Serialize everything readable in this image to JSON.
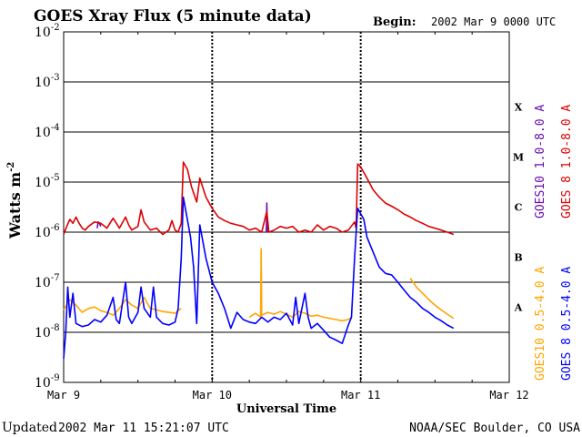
{
  "header": {
    "title": "GOES Xray Flux (5 minute data)",
    "begin_label": "Begin:",
    "begin_value": "2002 Mar 9 0000 UTC"
  },
  "footer": {
    "updated_label": "Updated",
    "updated_value": "2002 Mar 11 15:21:07 UTC",
    "credit": "NOAA/SEC Boulder, CO USA"
  },
  "chart_data": {
    "type": "line",
    "title": "GOES Xray Flux (5 minute data)",
    "xlabel": "Universal Time",
    "ylabel": "Watts m",
    "ylabel_sup": "-2",
    "yscale": "log",
    "ylim": [
      1e-09,
      0.01
    ],
    "xlim": [
      "2002-03-09 00:00",
      "2002-03-12 00:00"
    ],
    "x_ticks": [
      "Mar 9",
      "Mar 10",
      "Mar 11",
      "Mar 12"
    ],
    "y_ticks": [
      {
        "base": "10",
        "exp": "-9"
      },
      {
        "base": "10",
        "exp": "-8"
      },
      {
        "base": "10",
        "exp": "-7"
      },
      {
        "base": "10",
        "exp": "-6"
      },
      {
        "base": "10",
        "exp": "-5"
      },
      {
        "base": "10",
        "exp": "-4"
      },
      {
        "base": "10",
        "exp": "-3"
      },
      {
        "base": "10",
        "exp": "-2"
      }
    ],
    "flare_classes": [
      "A",
      "B",
      "C",
      "M",
      "X"
    ],
    "grid": true,
    "legend": [
      {
        "text": "GOES10 1.0-8.0 A",
        "color": "#6a0dad"
      },
      {
        "text": "GOES 8 1.0-8.0 A",
        "color": "#dd0000"
      },
      {
        "text": "GOES10 0.5-4.0 A",
        "color": "#ffa500"
      },
      {
        "text": "GOES 8 0.5-4.0 A",
        "color": "#0000ff"
      }
    ],
    "series": [
      {
        "name": "GOES10 1.0-8.0 A",
        "color": "#6a0dad",
        "points": [
          [
            "2002-03-09 05:24",
            1.2e-06
          ],
          [
            "2002-03-09 05:36",
            1.6e-06
          ],
          [
            "2002-03-09 05:48",
            1.5e-06
          ],
          [
            "2002-03-09 06:00",
            1.3e-06
          ],
          [
            "2002-03-10 08:45",
            1e-06
          ],
          [
            "2002-03-10 08:50",
            3.8e-06
          ],
          [
            "2002-03-10 08:55",
            1e-06
          ]
        ]
      },
      {
        "name": "GOES 8 1.0-8.0 A",
        "color": "#dd0000",
        "points": [
          [
            "2002-03-09 00:00",
            9e-07
          ],
          [
            "2002-03-09 00:30",
            1.3e-06
          ],
          [
            "2002-03-09 01:00",
            1.8e-06
          ],
          [
            "2002-03-09 01:30",
            1.5e-06
          ],
          [
            "2002-03-09 02:00",
            2e-06
          ],
          [
            "2002-03-09 02:30",
            1.5e-06
          ],
          [
            "2002-03-09 03:00",
            1.2e-06
          ],
          [
            "2002-03-09 03:30",
            1.1e-06
          ],
          [
            "2002-03-09 04:00",
            1.3e-06
          ],
          [
            "2002-03-09 05:00",
            1.6e-06
          ],
          [
            "2002-03-09 06:00",
            1.5e-06
          ],
          [
            "2002-03-09 07:00",
            1.2e-06
          ],
          [
            "2002-03-09 08:00",
            1.9e-06
          ],
          [
            "2002-03-09 09:00",
            1.2e-06
          ],
          [
            "2002-03-09 10:00",
            2e-06
          ],
          [
            "2002-03-09 10:30",
            1.4e-06
          ],
          [
            "2002-03-09 11:00",
            1.1e-06
          ],
          [
            "2002-03-09 12:00",
            1.3e-06
          ],
          [
            "2002-03-09 12:30",
            2.8e-06
          ],
          [
            "2002-03-09 13:00",
            1.6e-06
          ],
          [
            "2002-03-09 14:00",
            1.1e-06
          ],
          [
            "2002-03-09 15:00",
            1.2e-06
          ],
          [
            "2002-03-09 16:00",
            9e-07
          ],
          [
            "2002-03-09 17:00",
            1.1e-06
          ],
          [
            "2002-03-09 17:30",
            1.7e-06
          ],
          [
            "2002-03-09 18:00",
            1.1e-06
          ],
          [
            "2002-03-09 18:30",
            1e-06
          ],
          [
            "2002-03-09 19:00",
            1.5e-06
          ],
          [
            "2002-03-09 19:20",
            2.5e-05
          ],
          [
            "2002-03-09 20:00",
            1.8e-05
          ],
          [
            "2002-03-09 20:40",
            8e-06
          ],
          [
            "2002-03-09 21:30",
            4e-06
          ],
          [
            "2002-03-09 22:00",
            1.2e-05
          ],
          [
            "2002-03-09 23:00",
            5e-06
          ],
          [
            "2002-03-10 00:00",
            3e-06
          ],
          [
            "2002-03-10 01:00",
            2e-06
          ],
          [
            "2002-03-10 02:00",
            1.7e-06
          ],
          [
            "2002-03-10 03:00",
            1.5e-06
          ],
          [
            "2002-03-10 04:00",
            1.4e-06
          ],
          [
            "2002-03-10 05:00",
            1.3e-06
          ],
          [
            "2002-03-10 06:00",
            1.1e-06
          ],
          [
            "2002-03-10 07:00",
            1.2e-06
          ],
          [
            "2002-03-10 08:00",
            1e-06
          ],
          [
            "2002-03-10 08:50",
            2.6e-06
          ],
          [
            "2002-03-10 09:10",
            1e-06
          ],
          [
            "2002-03-10 10:00",
            1.1e-06
          ],
          [
            "2002-03-10 11:00",
            1.3e-06
          ],
          [
            "2002-03-10 12:00",
            1.2e-06
          ],
          [
            "2002-03-10 13:00",
            1.3e-06
          ],
          [
            "2002-03-10 14:00",
            1e-06
          ],
          [
            "2002-03-10 15:00",
            1.1e-06
          ],
          [
            "2002-03-10 16:00",
            1e-06
          ],
          [
            "2002-03-10 17:00",
            1.4e-06
          ],
          [
            "2002-03-10 18:00",
            1.1e-06
          ],
          [
            "2002-03-10 19:00",
            1.3e-06
          ],
          [
            "2002-03-10 20:00",
            1.2e-06
          ],
          [
            "2002-03-10 21:00",
            1e-06
          ],
          [
            "2002-03-10 22:00",
            1.1e-06
          ],
          [
            "2002-03-10 23:00",
            1.6e-06
          ],
          [
            "2002-03-10 23:15",
            1.2e-06
          ],
          [
            "2002-03-10 23:30",
            2.3e-05
          ],
          [
            "2002-03-11 00:00",
            2e-05
          ],
          [
            "2002-03-11 01:00",
            1.2e-05
          ],
          [
            "2002-03-11 02:00",
            7e-06
          ],
          [
            "2002-03-11 03:00",
            5e-06
          ],
          [
            "2002-03-11 04:00",
            3.8e-06
          ],
          [
            "2002-03-11 05:00",
            3.3e-06
          ],
          [
            "2002-03-11 06:00",
            2.8e-06
          ],
          [
            "2002-03-11 07:00",
            2.3e-06
          ],
          [
            "2002-03-11 08:00",
            2e-06
          ],
          [
            "2002-03-11 09:00",
            1.7e-06
          ],
          [
            "2002-03-11 10:00",
            1.5e-06
          ],
          [
            "2002-03-11 11:00",
            1.3e-06
          ],
          [
            "2002-03-11 12:00",
            1.2e-06
          ],
          [
            "2002-03-11 13:00",
            1.1e-06
          ],
          [
            "2002-03-11 14:00",
            1e-06
          ],
          [
            "2002-03-11 15:00",
            9e-07
          ]
        ]
      },
      {
        "name": "GOES10 0.5-4.0 A",
        "color": "#ffa500",
        "points": [
          [
            "2002-03-09 00:00",
            2.8e-08
          ],
          [
            "2002-03-09 01:00",
            4.5e-08
          ],
          [
            "2002-03-09 02:00",
            3.5e-08
          ],
          [
            "2002-03-09 03:00",
            2.5e-08
          ],
          [
            "2002-03-09 04:00",
            3e-08
          ],
          [
            "2002-03-09 05:00",
            3.2e-08
          ],
          [
            "2002-03-09 06:00",
            2.7e-08
          ],
          [
            "2002-03-09 07:00",
            2.5e-08
          ],
          [
            "2002-03-09 08:00",
            2.2e-08
          ],
          [
            "2002-03-09 09:00",
            3e-08
          ],
          [
            "2002-03-09 10:00",
            4.5e-08
          ],
          [
            "2002-03-09 11:00",
            3.5e-08
          ],
          [
            "2002-03-09 12:00",
            3e-08
          ],
          [
            "2002-03-09 13:00",
            5e-08
          ],
          [
            "2002-03-09 14:00",
            3e-08
          ],
          [
            "2002-03-09 15:00",
            2.8e-08
          ],
          [
            "2002-03-09 16:00",
            2.6e-08
          ],
          [
            "2002-03-09 17:00",
            2.5e-08
          ],
          [
            "2002-03-09 18:00",
            2.4e-08
          ],
          [
            "2002-03-09 19:00",
            3e-08
          ],
          [
            "2002-03-10 06:00",
            2e-08
          ],
          [
            "2002-03-10 07:00",
            2.4e-08
          ],
          [
            "2002-03-10 07:50",
            2e-08
          ],
          [
            "2002-03-10 07:55",
            4.7e-07
          ],
          [
            "2002-03-10 08:00",
            2.2e-08
          ],
          [
            "2002-03-10 09:00",
            2.5e-08
          ],
          [
            "2002-03-10 10:00",
            2.3e-08
          ],
          [
            "2002-03-10 11:00",
            2.6e-08
          ],
          [
            "2002-03-10 12:00",
            2.3e-08
          ],
          [
            "2002-03-10 13:00",
            2e-08
          ],
          [
            "2002-03-10 14:00",
            2.6e-08
          ],
          [
            "2002-03-10 15:00",
            2.4e-08
          ],
          [
            "2002-03-10 16:00",
            2.1e-08
          ],
          [
            "2002-03-10 17:00",
            2.2e-08
          ],
          [
            "2002-03-10 18:00",
            2e-08
          ],
          [
            "2002-03-10 19:00",
            1.9e-08
          ],
          [
            "2002-03-10 20:00",
            1.8e-08
          ],
          [
            "2002-03-10 21:00",
            1.7e-08
          ],
          [
            "2002-03-10 22:00",
            1.8e-08
          ],
          [
            "2002-03-10 22:30",
            2e-08
          ],
          [
            "2002-03-11 08:00",
            1.2e-07
          ],
          [
            "2002-03-11 09:00",
            8e-08
          ],
          [
            "2002-03-11 10:00",
            6e-08
          ],
          [
            "2002-03-11 11:00",
            4.5e-08
          ],
          [
            "2002-03-11 12:00",
            3.5e-08
          ],
          [
            "2002-03-11 13:00",
            2.8e-08
          ],
          [
            "2002-03-11 14:00",
            2.3e-08
          ],
          [
            "2002-03-11 15:00",
            1.9e-08
          ]
        ]
      },
      {
        "name": "GOES 8 0.5-4.0 A",
        "color": "#0000ff",
        "points": [
          [
            "2002-03-09 00:00",
            3e-09
          ],
          [
            "2002-03-09 00:20",
            1e-08
          ],
          [
            "2002-03-09 00:40",
            8e-08
          ],
          [
            "2002-03-09 01:00",
            2e-08
          ],
          [
            "2002-03-09 01:30",
            6e-08
          ],
          [
            "2002-03-09 02:00",
            1.5e-08
          ],
          [
            "2002-03-09 03:00",
            1.3e-08
          ],
          [
            "2002-03-09 04:00",
            1.4e-08
          ],
          [
            "2002-03-09 05:00",
            1.8e-08
          ],
          [
            "2002-03-09 06:00",
            1.6e-08
          ],
          [
            "2002-03-09 07:00",
            2.2e-08
          ],
          [
            "2002-03-09 08:00",
            5e-08
          ],
          [
            "2002-03-09 08:30",
            1.8e-08
          ],
          [
            "2002-03-09 09:00",
            1.5e-08
          ],
          [
            "2002-03-09 10:00",
            1e-07
          ],
          [
            "2002-03-09 10:30",
            2e-08
          ],
          [
            "2002-03-09 11:00",
            1.5e-08
          ],
          [
            "2002-03-09 12:00",
            2.5e-08
          ],
          [
            "2002-03-09 12:30",
            8e-08
          ],
          [
            "2002-03-09 13:00",
            3e-08
          ],
          [
            "2002-03-09 14:00",
            2e-08
          ],
          [
            "2002-03-09 14:30",
            8e-08
          ],
          [
            "2002-03-09 15:00",
            2e-08
          ],
          [
            "2002-03-09 16:00",
            1.5e-08
          ],
          [
            "2002-03-09 17:00",
            1.4e-08
          ],
          [
            "2002-03-09 18:00",
            1.6e-08
          ],
          [
            "2002-03-09 18:30",
            3e-08
          ],
          [
            "2002-03-09 19:00",
            3e-07
          ],
          [
            "2002-03-09 19:20",
            5e-06
          ],
          [
            "2002-03-09 19:40",
            3e-06
          ],
          [
            "2002-03-09 20:30",
            8e-07
          ],
          [
            "2002-03-09 21:00",
            2e-07
          ],
          [
            "2002-03-09 21:30",
            1.5e-08
          ],
          [
            "2002-03-09 22:00",
            1.4e-06
          ],
          [
            "2002-03-09 23:00",
            3e-07
          ],
          [
            "2002-03-10 00:00",
            1e-07
          ],
          [
            "2002-03-10 01:00",
            6e-08
          ],
          [
            "2002-03-10 02:00",
            3e-08
          ],
          [
            "2002-03-10 03:00",
            1.2e-08
          ],
          [
            "2002-03-10 04:00",
            2.5e-08
          ],
          [
            "2002-03-10 05:00",
            1.8e-08
          ],
          [
            "2002-03-10 06:00",
            1.6e-08
          ],
          [
            "2002-03-10 07:00",
            1.5e-08
          ],
          [
            "2002-03-10 08:00",
            2e-08
          ],
          [
            "2002-03-10 09:00",
            1.6e-08
          ],
          [
            "2002-03-10 10:00",
            2e-08
          ],
          [
            "2002-03-10 11:00",
            1.8e-08
          ],
          [
            "2002-03-10 12:00",
            2.4e-08
          ],
          [
            "2002-03-10 13:00",
            1.4e-08
          ],
          [
            "2002-03-10 13:30",
            5e-08
          ],
          [
            "2002-03-10 14:00",
            1.5e-08
          ],
          [
            "2002-03-10 15:00",
            6e-08
          ],
          [
            "2002-03-10 15:30",
            2e-08
          ],
          [
            "2002-03-10 16:00",
            1.2e-08
          ],
          [
            "2002-03-10 17:00",
            1.5e-08
          ],
          [
            "2002-03-10 18:00",
            1.1e-08
          ],
          [
            "2002-03-10 19:00",
            8e-09
          ],
          [
            "2002-03-10 20:00",
            7e-09
          ],
          [
            "2002-03-10 21:00",
            6e-09
          ],
          [
            "2002-03-10 22:00",
            1.4e-08
          ],
          [
            "2002-03-10 22:30",
            2e-08
          ],
          [
            "2002-03-10 23:00",
            3e-07
          ],
          [
            "2002-03-10 23:30",
            3e-06
          ],
          [
            "2002-03-11 00:30",
            1.8e-06
          ],
          [
            "2002-03-11 01:00",
            8e-07
          ],
          [
            "2002-03-11 02:00",
            4e-07
          ],
          [
            "2002-03-11 03:00",
            2e-07
          ],
          [
            "2002-03-11 04:00",
            1.5e-07
          ],
          [
            "2002-03-11 05:00",
            1.4e-07
          ],
          [
            "2002-03-11 06:00",
            1e-07
          ],
          [
            "2002-03-11 07:00",
            7e-08
          ],
          [
            "2002-03-11 08:00",
            5e-08
          ],
          [
            "2002-03-11 09:00",
            4e-08
          ],
          [
            "2002-03-11 10:00",
            3e-08
          ],
          [
            "2002-03-11 11:00",
            2.5e-08
          ],
          [
            "2002-03-11 12:00",
            2e-08
          ],
          [
            "2002-03-11 13:00",
            1.7e-08
          ],
          [
            "2002-03-11 14:00",
            1.4e-08
          ],
          [
            "2002-03-11 15:00",
            1.2e-08
          ]
        ]
      }
    ]
  }
}
